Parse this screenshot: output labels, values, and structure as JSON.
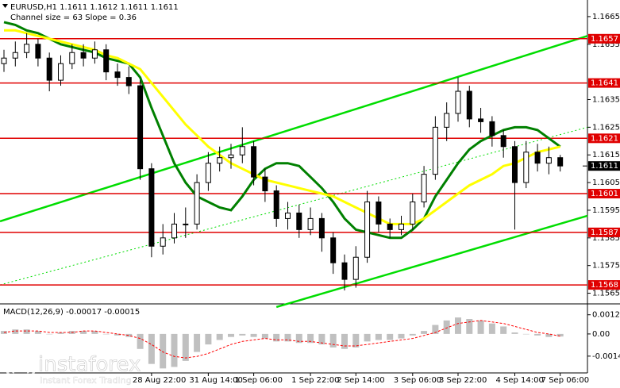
{
  "chart_data": {
    "type": "candlestick",
    "title": "EURUSD,H1  1.1611 1.1612 1.1611 1.1611",
    "subtitle": "Channel size = 63 Slope = 0.36",
    "categories": [
      null,
      null,
      null,
      null,
      null,
      null,
      null,
      null,
      null,
      null,
      null,
      null,
      null,
      "28 Aug 22:00",
      null,
      null,
      null,
      null,
      "31 Aug 14:00",
      null,
      null,
      null,
      "1 Sep 06:00",
      null,
      null,
      null,
      null,
      "1 Sep 22:00",
      null,
      null,
      null,
      "2 Sep 14:00",
      null,
      null,
      null,
      null,
      "3 Sep 06:00",
      null,
      null,
      null,
      "3 Sep 22:00",
      null,
      null,
      null,
      null,
      "4 Sep 14:00",
      null,
      null,
      null,
      "7 Sep 06:00"
    ],
    "open": [
      1.1648,
      1.165,
      1.1652,
      1.1655,
      1.165,
      1.1642,
      1.1648,
      1.1652,
      1.165,
      1.1653,
      1.1645,
      1.1643,
      1.164,
      1.161,
      1.1582,
      1.1585,
      1.159,
      1.159,
      1.1605,
      1.1612,
      1.1614,
      1.1615,
      1.1618,
      1.1607,
      1.1602,
      1.1592,
      1.1594,
      1.1588,
      1.1592,
      1.1585,
      1.1576,
      1.157,
      1.1578,
      1.1598,
      1.159,
      1.1588,
      1.159,
      1.1598,
      1.1608,
      1.1625,
      1.163,
      1.1638,
      1.1628,
      1.1627,
      1.1622,
      1.1618,
      1.1605,
      1.1616,
      1.1612,
      1.1614
    ],
    "high": [
      1.1653,
      1.1656,
      1.1659,
      1.1657,
      1.1652,
      1.1651,
      1.1655,
      1.1655,
      1.1656,
      1.1655,
      1.1648,
      1.1647,
      1.1642,
      1.1612,
      1.159,
      1.1594,
      1.1596,
      1.1608,
      1.1616,
      1.1618,
      1.1619,
      1.1625,
      1.162,
      1.161,
      1.1604,
      1.1598,
      1.1597,
      1.1596,
      1.1594,
      1.1587,
      1.1579,
      1.1582,
      1.1602,
      1.16,
      1.1592,
      1.1593,
      1.1601,
      1.1611,
      1.1629,
      1.1634,
      1.1643,
      1.164,
      1.1632,
      1.1629,
      1.1624,
      1.162,
      1.162,
      1.1619,
      1.1618,
      1.1615
    ],
    "low": [
      1.1645,
      1.1647,
      1.165,
      1.1647,
      1.1638,
      1.164,
      1.1646,
      1.1647,
      1.1648,
      1.1642,
      1.164,
      1.1637,
      1.1606,
      1.1578,
      1.1579,
      1.1583,
      1.1585,
      1.1588,
      1.1602,
      1.1609,
      1.161,
      1.1612,
      1.1604,
      1.1598,
      1.1589,
      1.1588,
      1.1585,
      1.1586,
      1.158,
      1.1572,
      1.1566,
      1.1567,
      1.1576,
      1.1587,
      1.1585,
      1.1586,
      1.1588,
      1.1596,
      1.1606,
      1.162,
      1.1627,
      1.1625,
      1.1623,
      1.1618,
      1.1614,
      1.1588,
      1.1603,
      1.1609,
      1.1608,
      1.1609
    ],
    "close": [
      1.165,
      1.1652,
      1.1655,
      1.165,
      1.1642,
      1.1648,
      1.1652,
      1.165,
      1.1653,
      1.1645,
      1.1643,
      1.164,
      1.161,
      1.1582,
      1.1585,
      1.159,
      1.159,
      1.1605,
      1.1612,
      1.1614,
      1.1615,
      1.1618,
      1.1607,
      1.1602,
      1.1592,
      1.1594,
      1.1588,
      1.1592,
      1.1585,
      1.1576,
      1.157,
      1.1578,
      1.1598,
      1.159,
      1.1588,
      1.159,
      1.1598,
      1.1608,
      1.1625,
      1.163,
      1.1638,
      1.1628,
      1.1627,
      1.1622,
      1.1618,
      1.1605,
      1.1616,
      1.1612,
      1.1614,
      1.1611
    ],
    "candle_color": "#000000",
    "moving_averages": [
      {
        "color": "#008000",
        "values": [
          1.1663,
          1.1662,
          1.166,
          1.1659,
          1.1657,
          1.1655,
          1.1654,
          1.1653,
          1.1652,
          1.165,
          1.1649,
          1.1648,
          1.1643,
          1.1632,
          1.1622,
          1.1612,
          1.1605,
          1.16,
          1.1598,
          1.1596,
          1.1595,
          1.16,
          1.1606,
          1.161,
          1.1612,
          1.1612,
          1.1611,
          1.1607,
          1.1603,
          1.1598,
          1.1592,
          1.1588,
          1.1587,
          1.1586,
          1.1585,
          1.1585,
          1.1588,
          1.1592,
          1.16,
          1.1606,
          1.1612,
          1.1617,
          1.162,
          1.1622,
          1.1624,
          1.1625,
          1.1625,
          1.1624,
          1.1621,
          1.1618
        ]
      },
      {
        "color": "#ffff00",
        "values": [
          1.166,
          1.166,
          1.1659,
          1.1658,
          1.1657,
          1.1656,
          1.1655,
          1.1654,
          1.1653,
          1.1651,
          1.165,
          1.1648,
          1.1646,
          1.1641,
          1.1636,
          1.1631,
          1.1626,
          1.1622,
          1.1618,
          1.1615,
          1.1612,
          1.161,
          1.1608,
          1.1606,
          1.1605,
          1.1604,
          1.1603,
          1.1602,
          1.1601,
          1.16,
          1.1598,
          1.1596,
          1.1594,
          1.1592,
          1.159,
          1.159,
          1.159,
          1.1592,
          1.1595,
          1.1598,
          1.1601,
          1.1604,
          1.1606,
          1.1608,
          1.1611,
          1.1612,
          1.1614,
          1.1616,
          1.1617,
          1.1618
        ]
      }
    ],
    "channels": [
      {
        "color": "#00dd00",
        "x": [
          -0.35,
          51.4
        ],
        "y": [
          1.1591,
          1.1658
        ]
      },
      {
        "color": "#00dd00",
        "x": [
          24,
          51.4
        ],
        "y": [
          1.156,
          1.1593
        ]
      },
      {
        "color": "#00dd00",
        "x": [
          -0.35,
          51.4
        ],
        "y": [
          1.1568,
          1.1625
        ],
        "dashed": true
      }
    ],
    "levels": [
      1.1657,
      1.1641,
      1.1621,
      1.1601,
      1.1587,
      1.1568
    ],
    "level_color": "#e00000",
    "last_price": 1.1611,
    "xlim": [
      -0.35,
      51.4
    ],
    "ylim": [
      1.1562,
      1.1671
    ],
    "yticks": [
      1.1665,
      1.1655,
      1.1635,
      1.1625,
      1.1615,
      1.1605,
      1.1595,
      1.1585,
      1.1575,
      1.1565
    ],
    "macd": {
      "title": "MACD(12,26,9) -0.00017 -0.00015",
      "ylim": [
        -0.0026,
        0.0019
      ],
      "yticks": [
        0.00128,
        {
          "value": 0,
          "label": "0.00"
        },
        -0.00148
      ],
      "histogram_color": "#c0c0c0",
      "signal_color": "#ff0000",
      "histogram": [
        0.0002,
        0.0003,
        0.0003,
        0.0002,
        0.0,
        0.0001,
        0.0002,
        0.0002,
        0.0002,
        0.0,
        -0.0001,
        -0.0002,
        -0.001,
        -0.002,
        -0.0023,
        -0.0022,
        -0.0018,
        -0.0012,
        -0.0007,
        -0.0004,
        -0.0002,
        -0.0001,
        -0.0002,
        -0.0003,
        -0.0005,
        -0.0005,
        -0.0006,
        -0.0006,
        -0.0007,
        -0.0009,
        -0.001,
        -0.0009,
        -0.0005,
        -0.0004,
        -0.0004,
        -0.0003,
        -0.0001,
        0.0002,
        0.0006,
        0.0009,
        0.0011,
        0.001,
        0.0009,
        0.0007,
        0.0005,
        0.0001,
        0.0,
        -0.0001,
        -0.0002,
        -0.00017
      ],
      "signal": [
        0.0001,
        0.0002,
        0.0002,
        0.0002,
        0.0001,
        0.0001,
        0.0001,
        0.0002,
        0.0002,
        0.0001,
        0.0,
        -0.0001,
        -0.0003,
        -0.0007,
        -0.0012,
        -0.0015,
        -0.0016,
        -0.0015,
        -0.0013,
        -0.001,
        -0.0007,
        -0.0005,
        -0.0004,
        -0.0003,
        -0.0004,
        -0.0004,
        -0.0005,
        -0.0005,
        -0.0006,
        -0.0007,
        -0.0008,
        -0.0008,
        -0.0007,
        -0.0006,
        -0.0005,
        -0.0004,
        -0.0003,
        -0.0001,
        0.0001,
        0.0004,
        0.0007,
        0.0008,
        0.0009,
        0.0008,
        0.0007,
        0.0005,
        0.0003,
        0.0001,
        0.0,
        -0.00015
      ]
    },
    "watermark": {
      "brand": "instaforex",
      "tagline": "Instant Forex Trading"
    }
  }
}
